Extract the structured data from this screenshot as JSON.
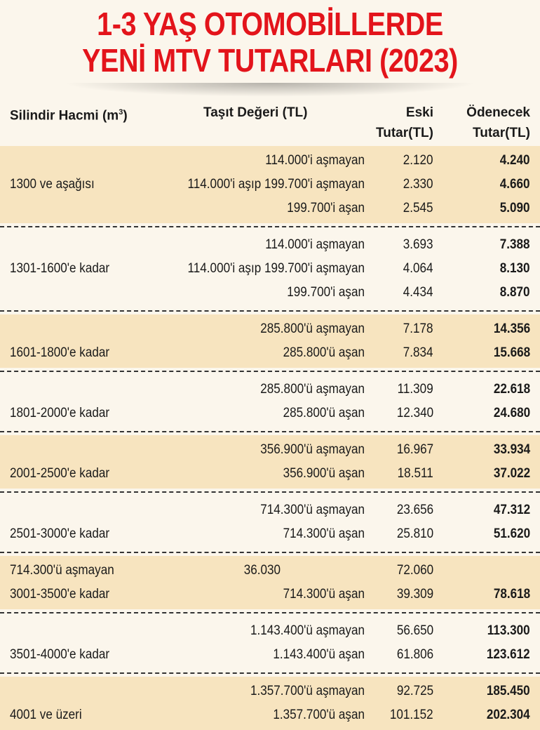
{
  "title_line1": "1-3 YAŞ OTOMOBİLLERDE",
  "title_line2": "YENİ MTV TUTARLARI (2023)",
  "headers": {
    "cylinder": "Silindir Hacmi (m",
    "cylinder_sup": "3",
    "cylinder_end": ")",
    "value": "Taşıt Değeri (TL)",
    "old_line1": "Eski",
    "old_line2": "Tutar(TL)",
    "new_line1": "Ödenecek",
    "new_line2": "Tutar(TL)"
  },
  "groups": [
    {
      "label": "1300 ve aşağısı",
      "shade": "tan",
      "rows": [
        {
          "value": "114.000'i aşmayan",
          "old": "2.120",
          "new": "4.240"
        },
        {
          "value": "114.000'i aşıp 199.700'i aşmayan",
          "old": "2.330",
          "new": "4.660"
        },
        {
          "value": "199.700'i aşan",
          "old": "2.545",
          "new": "5.090"
        }
      ]
    },
    {
      "label": "1301-1600'e kadar",
      "shade": "white",
      "rows": [
        {
          "value": "114.000'i aşmayan",
          "old": "3.693",
          "new": "7.388"
        },
        {
          "value": "114.000'i aşıp 199.700'i aşmayan",
          "old": "4.064",
          "new": "8.130"
        },
        {
          "value": "199.700'i aşan",
          "old": "4.434",
          "new": "8.870"
        }
      ]
    },
    {
      "label": "1601-1800'e kadar",
      "shade": "tan",
      "rows": [
        {
          "value": "285.800'ü aşmayan",
          "old": "7.178",
          "new": "14.356"
        },
        {
          "value": "285.800'ü aşan",
          "old": "7.834",
          "new": "15.668"
        }
      ]
    },
    {
      "label": "1801-2000'e kadar",
      "shade": "white",
      "rows": [
        {
          "value": "285.800'ü aşmayan",
          "old": "11.309",
          "new": "22.618"
        },
        {
          "value": "285.800'ü aşan",
          "old": "12.340",
          "new": "24.680"
        }
      ]
    },
    {
      "label": "2001-2500'e kadar",
      "shade": "tan",
      "rows": [
        {
          "value": "356.900'ü aşmayan",
          "old": "16.967",
          "new": "33.934"
        },
        {
          "value": "356.900'ü aşan",
          "old": "18.511",
          "new": "37.022"
        }
      ]
    },
    {
      "label": "2501-3000'e kadar",
      "shade": "white",
      "rows": [
        {
          "value": "714.300'ü aşmayan",
          "old": "23.656",
          "new": "47.312"
        },
        {
          "value": "714.300'ü aşan",
          "old": "25.810",
          "new": "51.620"
        }
      ]
    },
    {
      "label": "3001-3500'e kadar",
      "shade": "tan",
      "first_row_label": "714.300'ü aşmayan",
      "rows": [
        {
          "value": "36.030",
          "old": "72.060",
          "new": ""
        },
        {
          "value": "714.300'ü aşan",
          "old": "39.309",
          "new": "78.618"
        }
      ]
    },
    {
      "label": "3501-4000'e kadar",
      "shade": "white",
      "rows": [
        {
          "value": "1.143.400'ü aşmayan",
          "old": "56.650",
          "new": "113.300"
        },
        {
          "value": "1.143.400'ü aşan",
          "old": "61.806",
          "new": "123.612"
        }
      ]
    },
    {
      "label": "4001 ve üzeri",
      "shade": "tan",
      "rows": [
        {
          "value": "1.357.700'ü aşmayan",
          "old": "92.725",
          "new": "185.450"
        },
        {
          "value": "1.357.700'ü aşan",
          "old": "101.152",
          "new": "202.304"
        }
      ]
    }
  ],
  "colors": {
    "title": "#e3141b",
    "tan_row": "#f7e4bf",
    "background": "#fbf6ec"
  }
}
